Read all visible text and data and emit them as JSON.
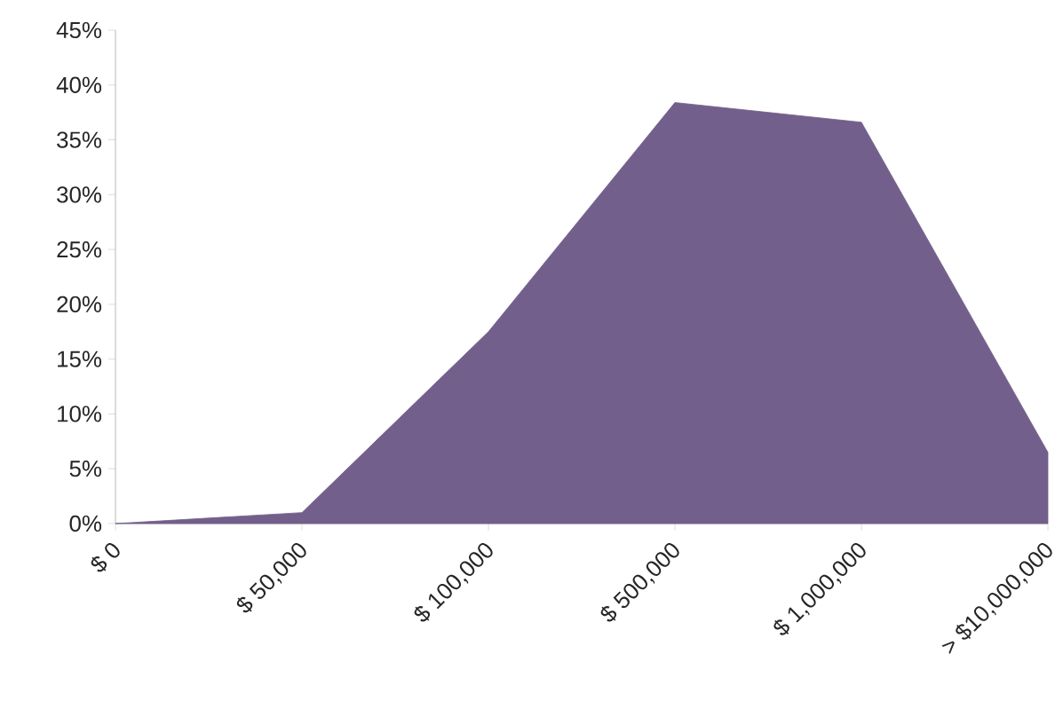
{
  "chart_data": {
    "type": "area",
    "categories": [
      "$ 0",
      "$ 50,000",
      "$ 100,000",
      "$ 500,000",
      "$ 1,000,000",
      "> $10,000,000"
    ],
    "values": [
      0,
      1.0,
      17.5,
      38.4,
      36.6,
      6.5
    ],
    "color": "#735f8b",
    "ylim": [
      0,
      45
    ],
    "yticks": [
      {
        "value": 0,
        "label": "0%"
      },
      {
        "value": 5,
        "label": "5%"
      },
      {
        "value": 10,
        "label": "10%"
      },
      {
        "value": 15,
        "label": "15%"
      },
      {
        "value": 20,
        "label": "20%"
      },
      {
        "value": 25,
        "label": "25%"
      },
      {
        "value": 30,
        "label": "30%"
      },
      {
        "value": 35,
        "label": "35%"
      },
      {
        "value": 40,
        "label": "40%"
      },
      {
        "value": 45,
        "label": "45%"
      }
    ],
    "grid": false
  }
}
